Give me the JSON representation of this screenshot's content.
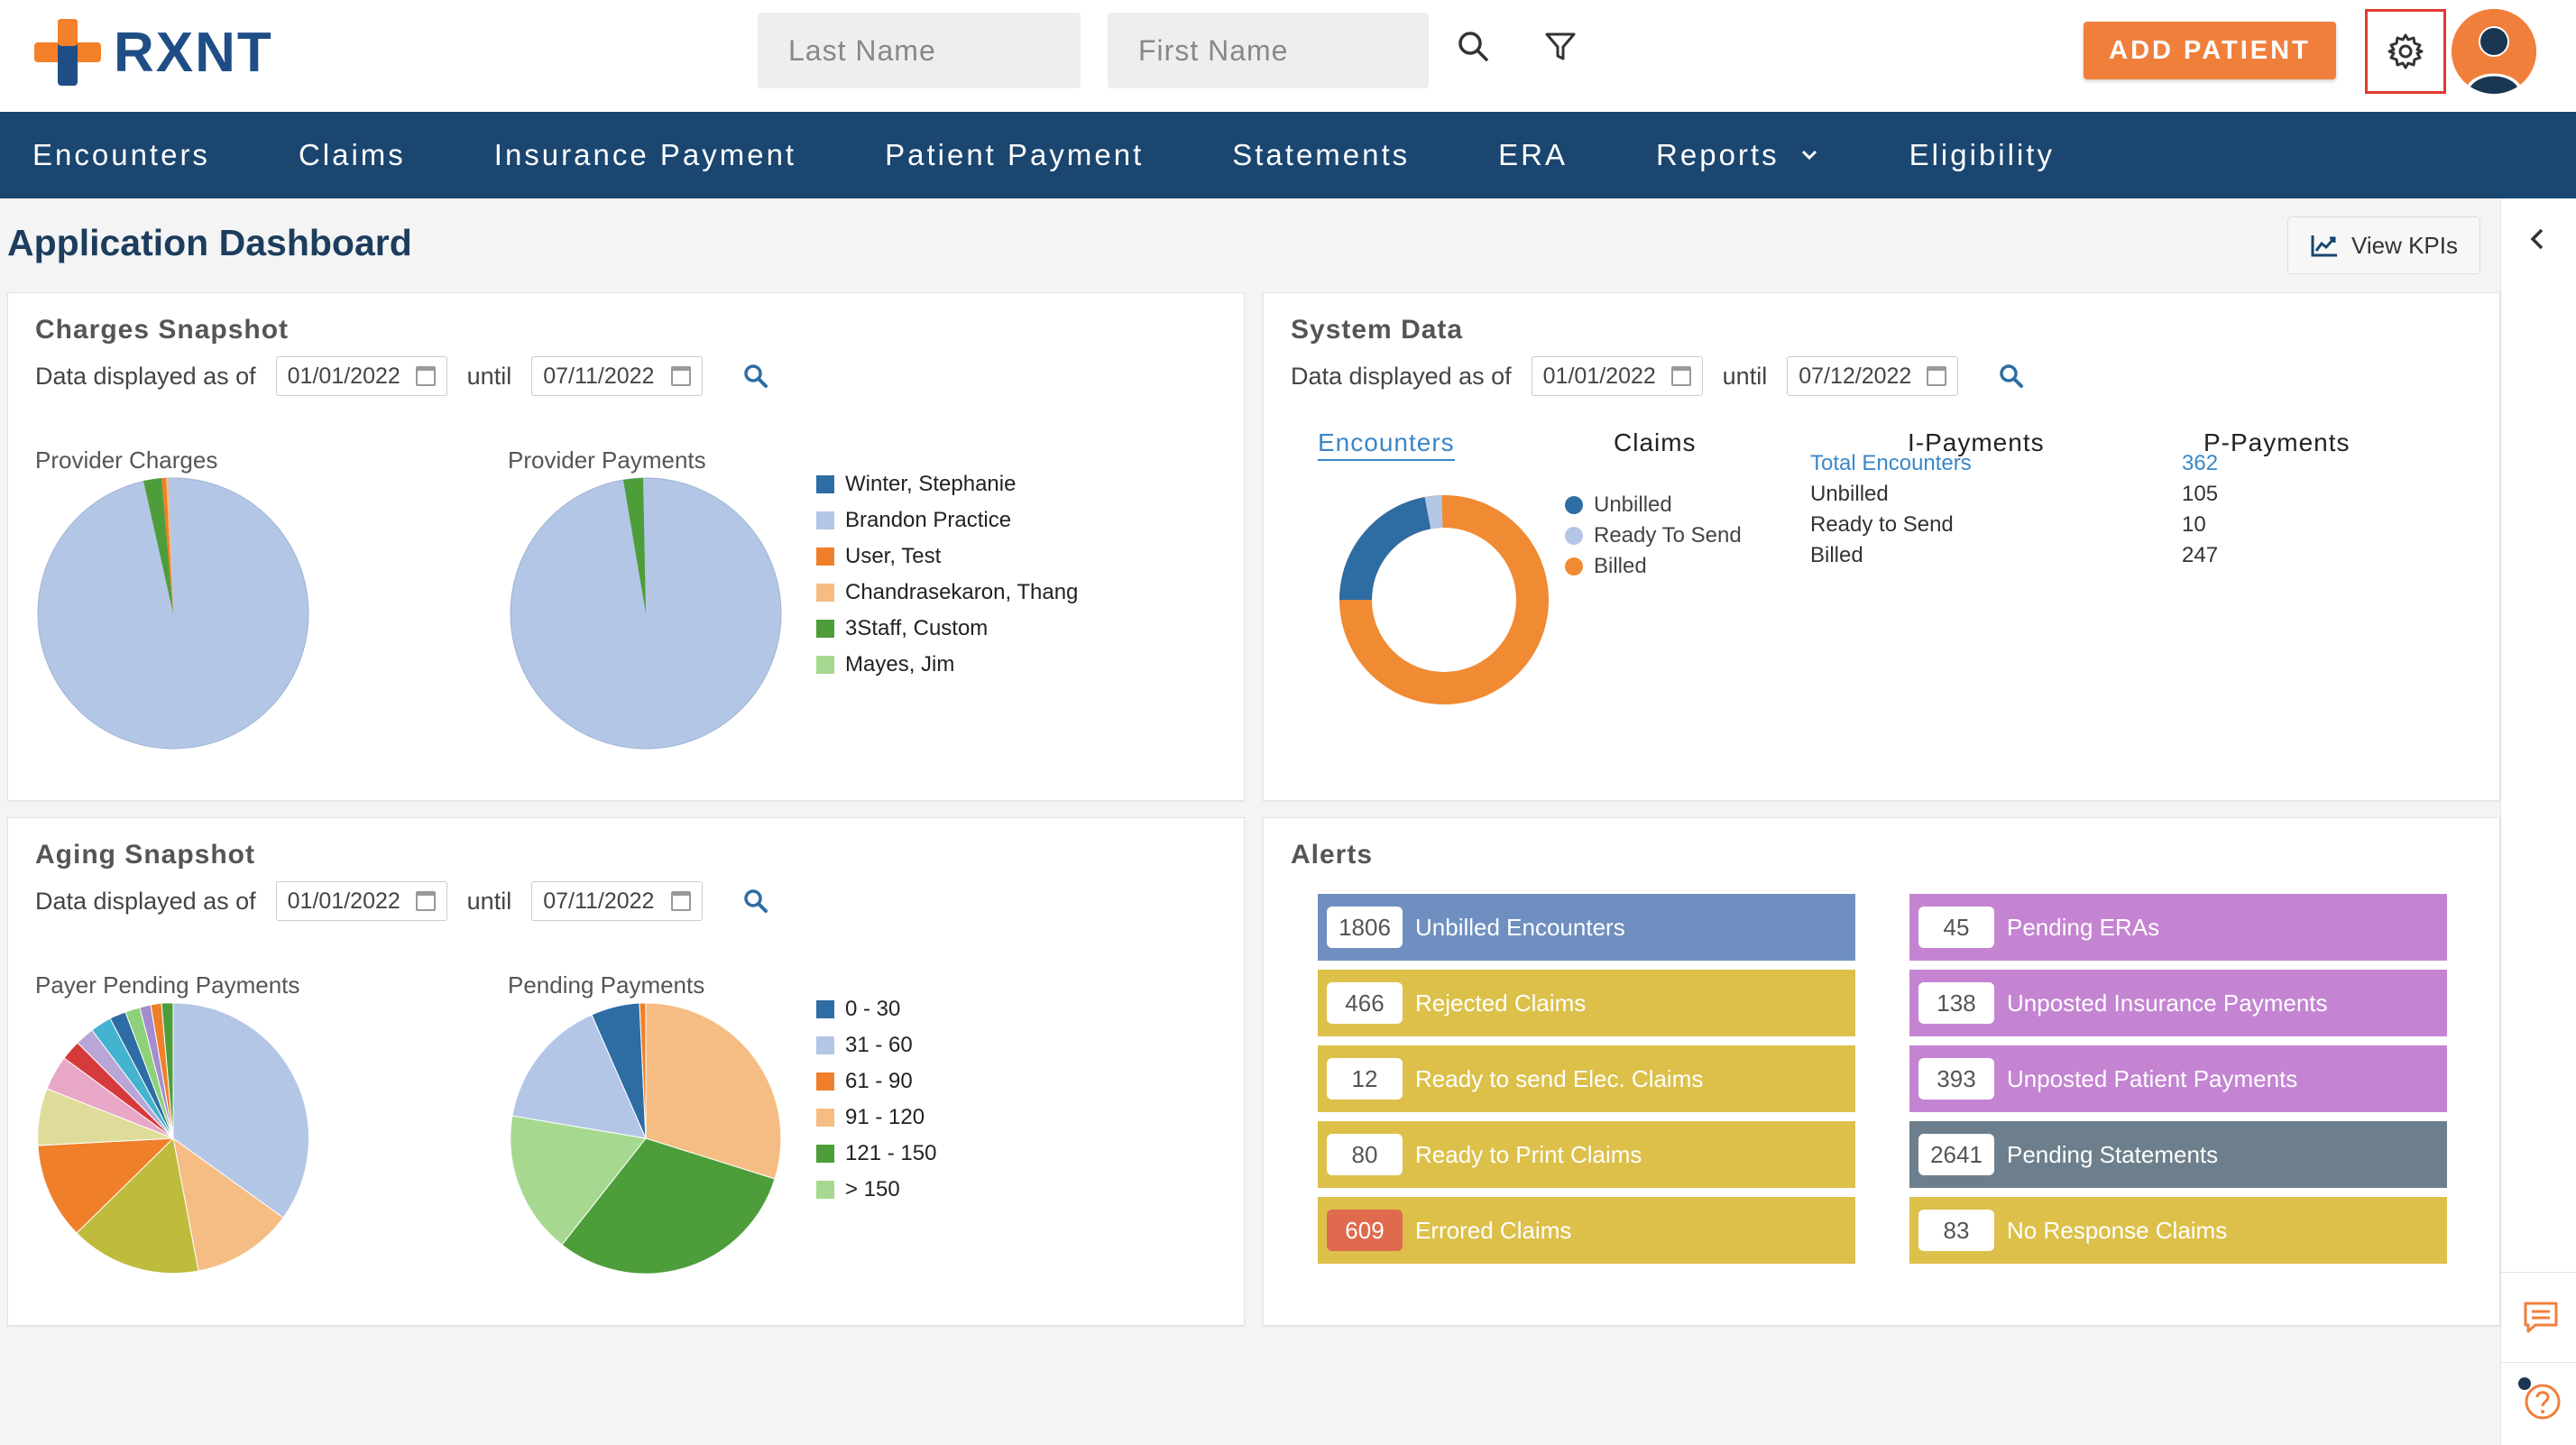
{
  "app": {
    "name": "RXNT"
  },
  "header": {
    "last_name_placeholder": "Last Name",
    "first_name_placeholder": "First Name",
    "add_patient_label": "ADD PATIENT",
    "icons": [
      "search-icon",
      "filter-icon",
      "gear-icon",
      "user-avatar-icon"
    ]
  },
  "nav": {
    "items": [
      {
        "label": "Encounters"
      },
      {
        "label": "Claims"
      },
      {
        "label": "Insurance Payment"
      },
      {
        "label": "Patient Payment"
      },
      {
        "label": "Statements"
      },
      {
        "label": "ERA"
      },
      {
        "label": "Reports",
        "has_dropdown": true
      },
      {
        "label": "Eligibility"
      }
    ]
  },
  "page": {
    "title": "Application Dashboard",
    "kpi_label": "View KPIs"
  },
  "charges": {
    "title": "Charges Snapshot",
    "prefix": "Data displayed as of",
    "from": "01/01/2022",
    "until_label": "until",
    "to": "07/11/2022",
    "chart1_label": "Provider Charges",
    "chart2_label": "Provider Payments",
    "legend": [
      {
        "label": "Winter, Stephanie",
        "color": "#2e6da4"
      },
      {
        "label": "Brandon Practice",
        "color": "#b3c6e6"
      },
      {
        "label": "User, Test",
        "color": "#f07f2a"
      },
      {
        "label": "Chandrasekaron, Thang",
        "color": "#f5bd83"
      },
      {
        "label": "3Staff, Custom",
        "color": "#4d9e3a"
      },
      {
        "label": "Mayes, Jim",
        "color": "#a6d98f"
      }
    ]
  },
  "aging": {
    "title": "Aging Snapshot",
    "prefix": "Data displayed as of",
    "from": "01/01/2022",
    "until_label": "until",
    "to": "07/11/2022",
    "chart1_label": "Payer Pending Payments",
    "chart2_label": "Pending Payments",
    "legend": [
      {
        "label": "0 - 30",
        "color": "#2e6da4"
      },
      {
        "label": "31 - 60",
        "color": "#b3c6e6"
      },
      {
        "label": "61 - 90",
        "color": "#f07f2a"
      },
      {
        "label": "91 - 120",
        "color": "#f5bd83"
      },
      {
        "label": "121 - 150",
        "color": "#4d9e3a"
      },
      {
        "label": "> 150",
        "color": "#a6d98f"
      }
    ]
  },
  "system": {
    "title": "System Data",
    "prefix": "Data displayed as of",
    "from": "01/01/2022",
    "until_label": "until",
    "to": "07/12/2022",
    "tabs": [
      "Encounters",
      "Claims",
      "I-Payments",
      "P-Payments"
    ],
    "legend": [
      {
        "label": "Unbilled",
        "color": "#2e6da4"
      },
      {
        "label": "Ready To Send",
        "color": "#b3c6e6"
      },
      {
        "label": "Billed",
        "color": "#f08a33"
      }
    ],
    "stats": [
      {
        "label": "Total Encounters",
        "value": "362"
      },
      {
        "label": "Unbilled",
        "value": "105"
      },
      {
        "label": "Ready to Send",
        "value": "10"
      },
      {
        "label": "Billed",
        "value": "247"
      }
    ]
  },
  "alerts": {
    "title": "Alerts",
    "left": [
      {
        "count": "1806",
        "label": "Unbilled Encounters",
        "color": "#6f8fc0"
      },
      {
        "count": "466",
        "label": "Rejected Claims",
        "color": "#dcc04a"
      },
      {
        "count": "12",
        "label": "Ready to send Elec. Claims",
        "color": "#dcc04a"
      },
      {
        "count": "80",
        "label": "Ready to Print Claims",
        "color": "#dcc04a"
      },
      {
        "count": "609",
        "label": "Errored Claims",
        "color": "#dcc04a",
        "count_bg": "#e06a4e"
      }
    ],
    "right": [
      {
        "count": "45",
        "label": "Pending ERAs",
        "color": "#c484d2"
      },
      {
        "count": "138",
        "label": "Unposted Insurance Payments",
        "color": "#c484d2"
      },
      {
        "count": "393",
        "label": "Unposted Patient Payments",
        "color": "#c484d2"
      },
      {
        "count": "2641",
        "label": "Pending Statements",
        "color": "#6d7f8c"
      },
      {
        "count": "83",
        "label": "No Response Claims",
        "color": "#dcc04a"
      }
    ]
  }
}
